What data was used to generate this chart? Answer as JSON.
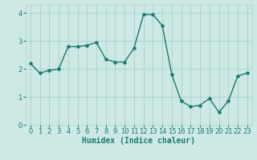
{
  "x": [
    0,
    1,
    2,
    3,
    4,
    5,
    6,
    7,
    8,
    9,
    10,
    11,
    12,
    13,
    14,
    15,
    16,
    17,
    18,
    19,
    20,
    21,
    22,
    23
  ],
  "y": [
    2.2,
    1.85,
    1.95,
    2.0,
    2.8,
    2.8,
    2.85,
    2.95,
    2.35,
    2.25,
    2.25,
    2.75,
    3.95,
    3.95,
    3.55,
    1.8,
    0.85,
    0.65,
    0.7,
    0.95,
    0.45,
    0.85,
    1.75,
    1.85
  ],
  "line_color": "#1a7a6a",
  "marker": "o",
  "marker_size": 2.2,
  "linewidth": 1.0,
  "bg_color": "#cde9e5",
  "grid_color": "#aacfca",
  "xlabel": "Humidex (Indice chaleur)",
  "ylabel": "",
  "title": "",
  "xlim": [
    -0.5,
    23.5
  ],
  "ylim": [
    0,
    4.3
  ],
  "yticks": [
    0,
    1,
    2,
    3,
    4
  ],
  "xticks": [
    0,
    1,
    2,
    3,
    4,
    5,
    6,
    7,
    8,
    9,
    10,
    11,
    12,
    13,
    14,
    15,
    16,
    17,
    18,
    19,
    20,
    21,
    22,
    23
  ],
  "tick_color": "#1a7a6a",
  "xlabel_fontsize": 7,
  "tick_fontsize": 6
}
